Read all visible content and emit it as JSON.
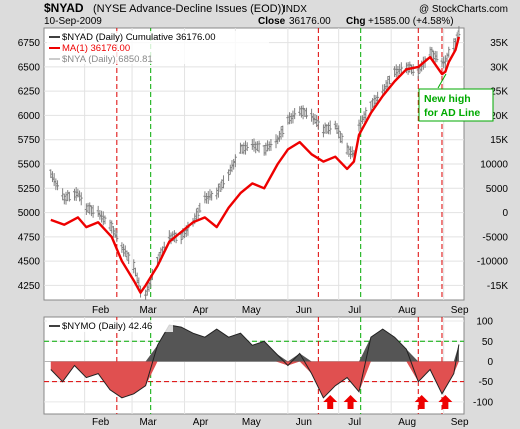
{
  "header": {
    "symbol": "$NYAD",
    "description": "(NYSE Advance-Decline Issues (EOD))",
    "exchange": "INDX",
    "watermark": "@ StockCharts.com",
    "date": "10-Sep-2009",
    "close_label": "Close",
    "close_value": "36176.00",
    "chg_label": "Chg",
    "chg_value": "+1585.00 (+4.58%)"
  },
  "legend": [
    {
      "text": "$NYAD (Daily) Cumulative 36176.00",
      "color": "#000000"
    },
    {
      "text": "MA(1) 36176.00",
      "color": "#ee0000"
    },
    {
      "text": "$NYA (Daily) 6850.81",
      "color": "#888888"
    }
  ],
  "annotation": {
    "line1": "New high",
    "line2": "for AD Line",
    "color": "#00aa00"
  },
  "lower_panel": {
    "label": "$NYMO (Daily) 42.46"
  },
  "colors": {
    "ad_line": "#ee0000",
    "nya_bars": "#808080",
    "vline_red": "#dd0000",
    "vline_green": "#00aa00",
    "osc_pos": "#555555",
    "osc_neg": "#e05050",
    "arrow": "#ee0000"
  },
  "chart_data": [
    {
      "type": "line",
      "title": "$NYAD (NYSE Advance-Decline Issues (EOD))",
      "x_axis": {
        "months": [
          "Feb",
          "Mar",
          "Apr",
          "May",
          "Jun",
          "Jul",
          "Aug",
          "Sep"
        ]
      },
      "left_axis": {
        "ylim": [
          4100,
          6900
        ],
        "ticks": [
          "4250",
          "4500",
          "4750",
          "5000",
          "5250",
          "5500",
          "5750",
          "6000",
          "6250",
          "6500",
          "6750"
        ]
      },
      "right_axis": {
        "ylim": [
          -18000,
          38000
        ],
        "ticks": [
          "-15K",
          "-10000",
          "-5000",
          "0",
          "5000",
          "10000",
          "15K",
          "20K",
          "25K",
          "30K",
          "35K"
        ]
      },
      "series": [
        {
          "name": "$NYAD (Daily) Cumulative",
          "axis": "right",
          "x": [
            "2009-01-12",
            "2009-01-20",
            "2009-01-28",
            "2009-02-02",
            "2009-02-09",
            "2009-02-17",
            "2009-02-23",
            "2009-03-02",
            "2009-03-06",
            "2009-03-09",
            "2009-03-16",
            "2009-03-23",
            "2009-03-30",
            "2009-04-06",
            "2009-04-13",
            "2009-04-20",
            "2009-04-27",
            "2009-05-04",
            "2009-05-11",
            "2009-05-18",
            "2009-05-26",
            "2009-06-01",
            "2009-06-08",
            "2009-06-15",
            "2009-06-22",
            "2009-06-29",
            "2009-07-06",
            "2009-07-10",
            "2009-07-13",
            "2009-07-20",
            "2009-07-27",
            "2009-08-03",
            "2009-08-10",
            "2009-08-17",
            "2009-08-24",
            "2009-08-31",
            "2009-09-02",
            "2009-09-04",
            "2009-09-08",
            "2009-09-10"
          ],
          "values": [
            -1500,
            -2500,
            -1000,
            -3000,
            -2000,
            -5000,
            -10000,
            -14000,
            -16500,
            -15000,
            -11000,
            -6000,
            -4000,
            -2000,
            -1000,
            -3000,
            1000,
            4000,
            6000,
            5000,
            10000,
            13000,
            14500,
            12000,
            10500,
            11500,
            9000,
            10500,
            16000,
            20500,
            24000,
            27000,
            29500,
            30000,
            32000,
            28500,
            29000,
            31000,
            33500,
            36176
          ]
        },
        {
          "name": "MA(1)",
          "axis": "right",
          "note": "identical to $NYAD"
        },
        {
          "name": "$NYA (Daily)",
          "axis": "left",
          "type": "ohlc",
          "x": [
            "2009-01-12",
            "2009-01-20",
            "2009-01-28",
            "2009-02-02",
            "2009-02-09",
            "2009-02-17",
            "2009-02-23",
            "2009-03-02",
            "2009-03-06",
            "2009-03-09",
            "2009-03-16",
            "2009-03-23",
            "2009-03-30",
            "2009-04-06",
            "2009-04-13",
            "2009-04-20",
            "2009-04-27",
            "2009-05-04",
            "2009-05-11",
            "2009-05-18",
            "2009-05-26",
            "2009-06-01",
            "2009-06-08",
            "2009-06-15",
            "2009-06-22",
            "2009-06-29",
            "2009-07-06",
            "2009-07-10",
            "2009-07-13",
            "2009-07-20",
            "2009-07-27",
            "2009-08-03",
            "2009-08-10",
            "2009-08-17",
            "2009-08-24",
            "2009-08-31",
            "2009-09-02",
            "2009-09-04",
            "2009-09-08",
            "2009-09-10"
          ],
          "values": [
            5400,
            5150,
            5200,
            5050,
            5000,
            4850,
            4650,
            4450,
            4200,
            4150,
            4500,
            4750,
            4750,
            4900,
            5150,
            5200,
            5400,
            5650,
            5700,
            5650,
            5750,
            5950,
            6050,
            6000,
            5850,
            5900,
            5650,
            5600,
            5900,
            6100,
            6250,
            6450,
            6500,
            6450,
            6650,
            6550,
            6550,
            6650,
            6750,
            6850
          ]
        }
      ]
    },
    {
      "type": "area",
      "title": "$NYMO (Daily) 42.46",
      "ylim": [
        -130,
        110
      ],
      "y_ticks": [
        "100",
        "50",
        "0",
        "-50",
        "-100"
      ],
      "reference_lines": [
        50,
        -50
      ],
      "x": [
        "2009-01-12",
        "2009-01-19",
        "2009-01-26",
        "2009-02-02",
        "2009-02-09",
        "2009-02-16",
        "2009-02-23",
        "2009-03-02",
        "2009-03-09",
        "2009-03-16",
        "2009-03-23",
        "2009-03-30",
        "2009-04-06",
        "2009-04-13",
        "2009-04-20",
        "2009-04-27",
        "2009-05-04",
        "2009-05-11",
        "2009-05-18",
        "2009-05-25",
        "2009-06-01",
        "2009-06-08",
        "2009-06-15",
        "2009-06-22",
        "2009-06-29",
        "2009-07-06",
        "2009-07-13",
        "2009-07-20",
        "2009-07-27",
        "2009-08-03",
        "2009-08-10",
        "2009-08-17",
        "2009-08-24",
        "2009-08-31",
        "2009-09-07",
        "2009-09-10"
      ],
      "values": [
        -20,
        -50,
        -10,
        -40,
        -30,
        -70,
        -90,
        -80,
        -60,
        40,
        90,
        85,
        70,
        60,
        80,
        60,
        70,
        40,
        50,
        20,
        -10,
        20,
        -30,
        -90,
        -60,
        -40,
        -75,
        60,
        80,
        60,
        30,
        -50,
        -20,
        -80,
        -30,
        42
      ]
    }
  ]
}
